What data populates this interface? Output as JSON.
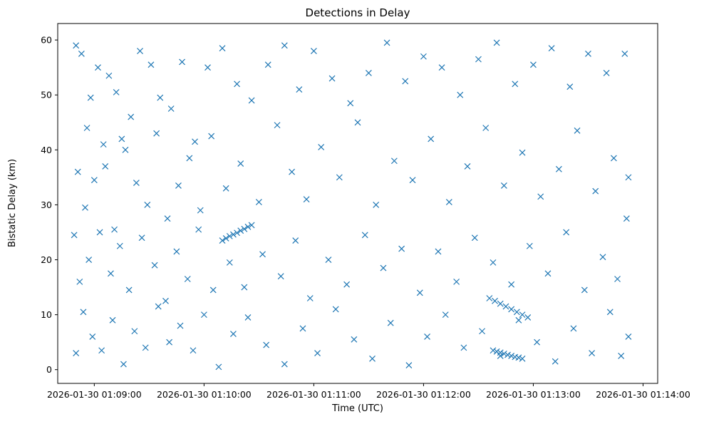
{
  "chart_data": {
    "type": "scatter",
    "title": "Detections in Delay",
    "xlabel": "Time (UTC)",
    "ylabel": "Bistatic Delay (km)",
    "x_ticks": [
      "2026-01-30 01:09:00",
      "2026-01-30 01:10:00",
      "2026-01-30 01:11:00",
      "2026-01-30 01:12:00",
      "2026-01-30 01:13:00",
      "2026-01-30 01:14:00"
    ],
    "y_ticks": [
      0,
      10,
      20,
      30,
      40,
      50,
      60
    ],
    "xlim": [
      "2026-01-30 01:08:40",
      "2026-01-30 01:14:08"
    ],
    "ylim": [
      -2.5,
      63
    ],
    "marker": "x",
    "grid": false,
    "colors": {
      "series": "#1f77b4"
    },
    "series": [
      {
        "points": [
          [
            "2026-01-30 01:08:50",
            59.0
          ],
          [
            "2026-01-30 01:08:53",
            57.5
          ],
          [
            "2026-01-30 01:08:56",
            44.0
          ],
          [
            "2026-01-30 01:08:58",
            49.5
          ],
          [
            "2026-01-30 01:09:02",
            55.0
          ],
          [
            "2026-01-30 01:09:05",
            41.0
          ],
          [
            "2026-01-30 01:09:08",
            53.5
          ],
          [
            "2026-01-30 01:09:12",
            50.5
          ],
          [
            "2026-01-30 01:09:15",
            42.0
          ],
          [
            "2026-01-30 01:09:20",
            46.0
          ],
          [
            "2026-01-30 01:09:25",
            58.0
          ],
          [
            "2026-01-30 01:09:31",
            55.5
          ],
          [
            "2026-01-30 01:09:36",
            49.5
          ],
          [
            "2026-01-30 01:09:42",
            47.5
          ],
          [
            "2026-01-30 01:09:48",
            56.0
          ],
          [
            "2026-01-30 01:09:55",
            41.5
          ],
          [
            "2026-01-30 01:10:02",
            55.0
          ],
          [
            "2026-01-30 01:10:10",
            58.5
          ],
          [
            "2026-01-30 01:10:18",
            52.0
          ],
          [
            "2026-01-30 01:10:26",
            49.0
          ],
          [
            "2026-01-30 01:10:35",
            55.5
          ],
          [
            "2026-01-30 01:10:44",
            59.0
          ],
          [
            "2026-01-30 01:10:52",
            51.0
          ],
          [
            "2026-01-30 01:11:00",
            58.0
          ],
          [
            "2026-01-30 01:11:10",
            53.0
          ],
          [
            "2026-01-30 01:11:20",
            48.5
          ],
          [
            "2026-01-30 01:11:30",
            54.0
          ],
          [
            "2026-01-30 01:11:40",
            59.5
          ],
          [
            "2026-01-30 01:11:50",
            52.5
          ],
          [
            "2026-01-30 01:12:00",
            57.0
          ],
          [
            "2026-01-30 01:12:10",
            55.0
          ],
          [
            "2026-01-30 01:12:20",
            50.0
          ],
          [
            "2026-01-30 01:12:30",
            56.5
          ],
          [
            "2026-01-30 01:12:40",
            59.5
          ],
          [
            "2026-01-30 01:12:50",
            52.0
          ],
          [
            "2026-01-30 01:13:00",
            55.5
          ],
          [
            "2026-01-30 01:13:10",
            58.5
          ],
          [
            "2026-01-30 01:13:20",
            51.5
          ],
          [
            "2026-01-30 01:13:30",
            57.5
          ],
          [
            "2026-01-30 01:13:40",
            54.0
          ],
          [
            "2026-01-30 01:13:50",
            57.5
          ],
          [
            "2026-01-30 01:08:51",
            36.0
          ],
          [
            "2026-01-30 01:08:55",
            29.5
          ],
          [
            "2026-01-30 01:09:00",
            34.5
          ],
          [
            "2026-01-30 01:09:06",
            37.0
          ],
          [
            "2026-01-30 01:09:11",
            25.5
          ],
          [
            "2026-01-30 01:09:17",
            40.0
          ],
          [
            "2026-01-30 01:09:23",
            34.0
          ],
          [
            "2026-01-30 01:09:29",
            30.0
          ],
          [
            "2026-01-30 01:09:34",
            43.0
          ],
          [
            "2026-01-30 01:09:40",
            27.5
          ],
          [
            "2026-01-30 01:09:46",
            33.5
          ],
          [
            "2026-01-30 01:09:52",
            38.5
          ],
          [
            "2026-01-30 01:09:58",
            29.0
          ],
          [
            "2026-01-30 01:10:04",
            42.5
          ],
          [
            "2026-01-30 01:10:12",
            33.0
          ],
          [
            "2026-01-30 01:10:20",
            37.5
          ],
          [
            "2026-01-30 01:10:30",
            30.5
          ],
          [
            "2026-01-30 01:10:40",
            44.5
          ],
          [
            "2026-01-30 01:10:48",
            36.0
          ],
          [
            "2026-01-30 01:10:56",
            31.0
          ],
          [
            "2026-01-30 01:11:04",
            40.5
          ],
          [
            "2026-01-30 01:11:14",
            35.0
          ],
          [
            "2026-01-30 01:11:24",
            45.0
          ],
          [
            "2026-01-30 01:11:34",
            30.0
          ],
          [
            "2026-01-30 01:11:44",
            38.0
          ],
          [
            "2026-01-30 01:11:54",
            34.5
          ],
          [
            "2026-01-30 01:12:04",
            42.0
          ],
          [
            "2026-01-30 01:12:14",
            30.5
          ],
          [
            "2026-01-30 01:12:24",
            37.0
          ],
          [
            "2026-01-30 01:12:34",
            44.0
          ],
          [
            "2026-01-30 01:12:44",
            33.5
          ],
          [
            "2026-01-30 01:12:54",
            39.5
          ],
          [
            "2026-01-30 01:13:04",
            31.5
          ],
          [
            "2026-01-30 01:13:14",
            36.5
          ],
          [
            "2026-01-30 01:13:24",
            43.5
          ],
          [
            "2026-01-30 01:13:34",
            32.5
          ],
          [
            "2026-01-30 01:13:44",
            38.5
          ],
          [
            "2026-01-30 01:13:52",
            35.0
          ],
          [
            "2026-01-30 01:08:49",
            24.5
          ],
          [
            "2026-01-30 01:08:52",
            16.0
          ],
          [
            "2026-01-30 01:08:57",
            20.0
          ],
          [
            "2026-01-30 01:09:03",
            25.0
          ],
          [
            "2026-01-30 01:09:09",
            17.5
          ],
          [
            "2026-01-30 01:09:14",
            22.5
          ],
          [
            "2026-01-30 01:09:19",
            14.5
          ],
          [
            "2026-01-30 01:09:26",
            24.0
          ],
          [
            "2026-01-30 01:09:33",
            19.0
          ],
          [
            "2026-01-30 01:09:39",
            12.5
          ],
          [
            "2026-01-30 01:09:45",
            21.5
          ],
          [
            "2026-01-30 01:09:51",
            16.5
          ],
          [
            "2026-01-30 01:09:57",
            25.5
          ],
          [
            "2026-01-30 01:10:05",
            14.5
          ],
          [
            "2026-01-30 01:10:14",
            19.5
          ],
          [
            "2026-01-30 01:10:22",
            15.0
          ],
          [
            "2026-01-30 01:10:32",
            21.0
          ],
          [
            "2026-01-30 01:10:42",
            17.0
          ],
          [
            "2026-01-30 01:10:50",
            23.5
          ],
          [
            "2026-01-30 01:10:58",
            13.0
          ],
          [
            "2026-01-30 01:11:08",
            20.0
          ],
          [
            "2026-01-30 01:11:18",
            15.5
          ],
          [
            "2026-01-30 01:11:28",
            24.5
          ],
          [
            "2026-01-30 01:11:38",
            18.5
          ],
          [
            "2026-01-30 01:11:48",
            22.0
          ],
          [
            "2026-01-30 01:11:58",
            14.0
          ],
          [
            "2026-01-30 01:12:08",
            21.5
          ],
          [
            "2026-01-30 01:12:18",
            16.0
          ],
          [
            "2026-01-30 01:12:28",
            24.0
          ],
          [
            "2026-01-30 01:12:38",
            19.5
          ],
          [
            "2026-01-30 01:12:48",
            15.5
          ],
          [
            "2026-01-30 01:12:58",
            22.5
          ],
          [
            "2026-01-30 01:13:08",
            17.5
          ],
          [
            "2026-01-30 01:13:18",
            25.0
          ],
          [
            "2026-01-30 01:13:28",
            14.5
          ],
          [
            "2026-01-30 01:13:38",
            20.5
          ],
          [
            "2026-01-30 01:13:46",
            16.5
          ],
          [
            "2026-01-30 01:13:51",
            27.5
          ],
          [
            "2026-01-30 01:08:50",
            3.0
          ],
          [
            "2026-01-30 01:08:54",
            10.5
          ],
          [
            "2026-01-30 01:08:59",
            6.0
          ],
          [
            "2026-01-30 01:09:04",
            3.5
          ],
          [
            "2026-01-30 01:09:10",
            9.0
          ],
          [
            "2026-01-30 01:09:16",
            1.0
          ],
          [
            "2026-01-30 01:09:22",
            7.0
          ],
          [
            "2026-01-30 01:09:28",
            4.0
          ],
          [
            "2026-01-30 01:09:35",
            11.5
          ],
          [
            "2026-01-30 01:09:41",
            5.0
          ],
          [
            "2026-01-30 01:09:47",
            8.0
          ],
          [
            "2026-01-30 01:09:54",
            3.5
          ],
          [
            "2026-01-30 01:10:00",
            10.0
          ],
          [
            "2026-01-30 01:10:08",
            0.5
          ],
          [
            "2026-01-30 01:10:16",
            6.5
          ],
          [
            "2026-01-30 01:10:24",
            9.5
          ],
          [
            "2026-01-30 01:10:34",
            4.5
          ],
          [
            "2026-01-30 01:10:44",
            1.0
          ],
          [
            "2026-01-30 01:10:54",
            7.5
          ],
          [
            "2026-01-30 01:11:02",
            3.0
          ],
          [
            "2026-01-30 01:11:12",
            11.0
          ],
          [
            "2026-01-30 01:11:22",
            5.5
          ],
          [
            "2026-01-30 01:11:32",
            2.0
          ],
          [
            "2026-01-30 01:11:42",
            8.5
          ],
          [
            "2026-01-30 01:11:52",
            0.8
          ],
          [
            "2026-01-30 01:12:02",
            6.0
          ],
          [
            "2026-01-30 01:12:12",
            10.0
          ],
          [
            "2026-01-30 01:12:22",
            4.0
          ],
          [
            "2026-01-30 01:12:32",
            7.0
          ],
          [
            "2026-01-30 01:12:42",
            2.5
          ],
          [
            "2026-01-30 01:12:52",
            9.0
          ],
          [
            "2026-01-30 01:13:02",
            5.0
          ],
          [
            "2026-01-30 01:13:12",
            1.5
          ],
          [
            "2026-01-30 01:13:22",
            7.5
          ],
          [
            "2026-01-30 01:13:32",
            3.0
          ],
          [
            "2026-01-30 01:13:42",
            10.5
          ],
          [
            "2026-01-30 01:13:48",
            2.5
          ],
          [
            "2026-01-30 01:13:52",
            6.0
          ],
          [
            "2026-01-30 01:10:10",
            23.5
          ],
          [
            "2026-01-30 01:10:12",
            23.9
          ],
          [
            "2026-01-30 01:10:14",
            24.3
          ],
          [
            "2026-01-30 01:10:16",
            24.6
          ],
          [
            "2026-01-30 01:10:18",
            24.9
          ],
          [
            "2026-01-30 01:10:20",
            25.3
          ],
          [
            "2026-01-30 01:10:22",
            25.6
          ],
          [
            "2026-01-30 01:10:24",
            26.0
          ],
          [
            "2026-01-30 01:10:26",
            26.3
          ],
          [
            "2026-01-30 01:12:38",
            3.5
          ],
          [
            "2026-01-30 01:12:40",
            3.3
          ],
          [
            "2026-01-30 01:12:42",
            3.1
          ],
          [
            "2026-01-30 01:12:44",
            2.9
          ],
          [
            "2026-01-30 01:12:46",
            2.7
          ],
          [
            "2026-01-30 01:12:48",
            2.5
          ],
          [
            "2026-01-30 01:12:50",
            2.3
          ],
          [
            "2026-01-30 01:12:52",
            2.2
          ],
          [
            "2026-01-30 01:12:54",
            2.0
          ],
          [
            "2026-01-30 01:12:36",
            13.0
          ],
          [
            "2026-01-30 01:12:39",
            12.5
          ],
          [
            "2026-01-30 01:12:42",
            12.0
          ],
          [
            "2026-01-30 01:12:45",
            11.5
          ],
          [
            "2026-01-30 01:12:48",
            11.0
          ],
          [
            "2026-01-30 01:12:51",
            10.5
          ],
          [
            "2026-01-30 01:12:54",
            10.0
          ],
          [
            "2026-01-30 01:12:57",
            9.5
          ]
        ]
      }
    ]
  }
}
